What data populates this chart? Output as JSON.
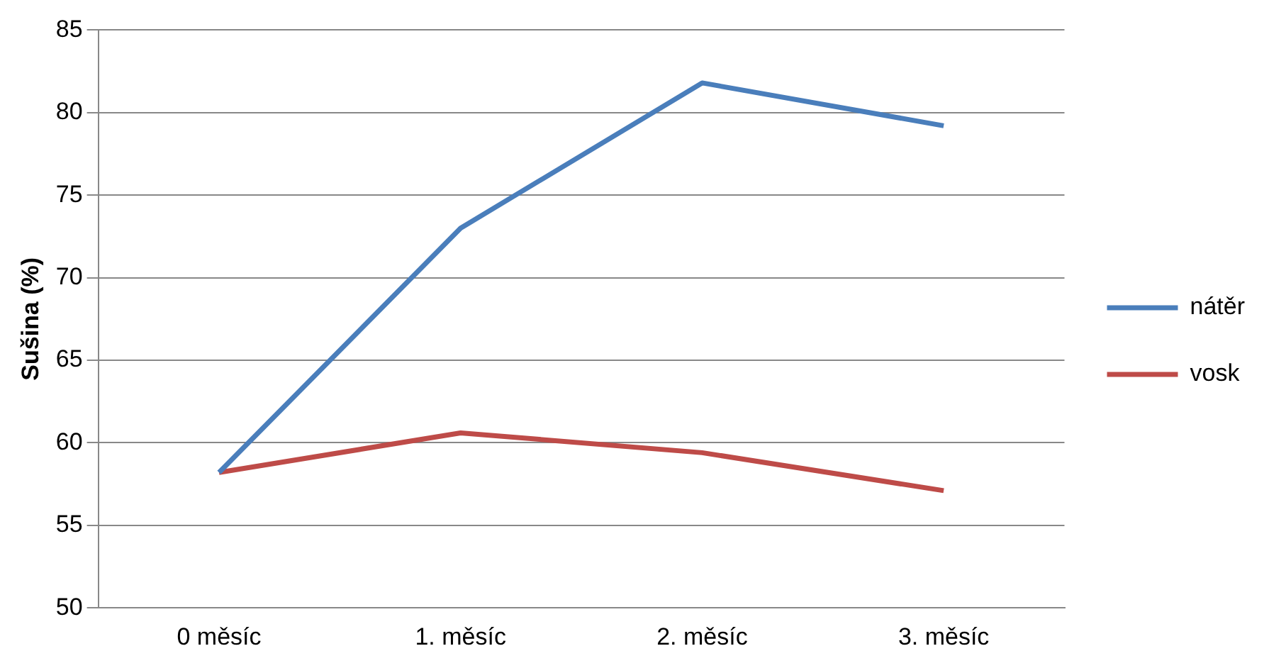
{
  "chart_data": {
    "type": "line",
    "ylabel": "Sušina (%)",
    "categories": [
      "0 měsíc",
      "1. měsíc",
      "2. měsíc",
      "3. měsíc"
    ],
    "series": [
      {
        "name": "nátěr",
        "color": "#4a7ebb",
        "values": [
          58.2,
          73.0,
          81.8,
          79.2
        ]
      },
      {
        "name": "vosk",
        "color": "#be4b48",
        "values": [
          58.2,
          60.6,
          59.4,
          57.1
        ]
      }
    ],
    "ylim": [
      50,
      85
    ],
    "yticks": [
      50,
      55,
      60,
      65,
      70,
      75,
      80,
      85
    ],
    "grid": "y",
    "legend": "right",
    "marker": "none",
    "line_style": "solid"
  }
}
